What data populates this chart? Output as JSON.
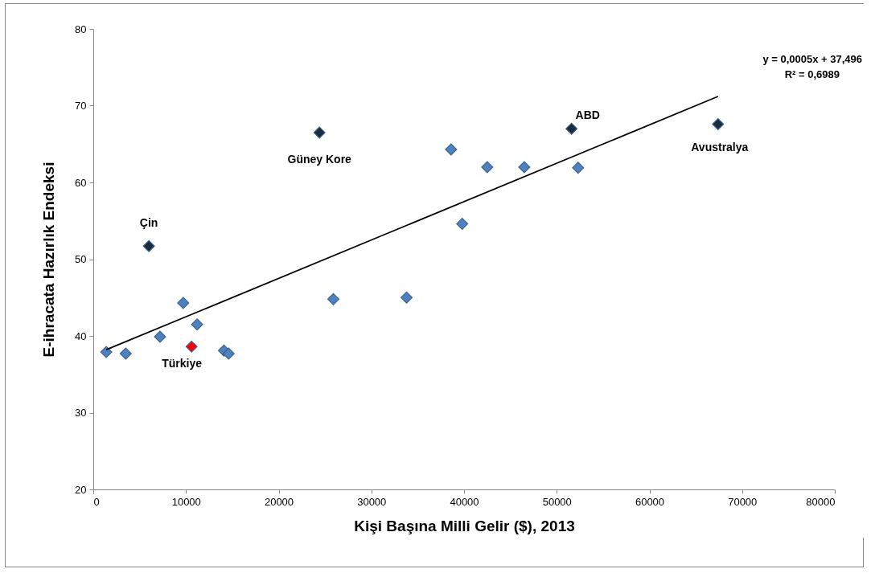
{
  "chart_data": {
    "type": "scatter",
    "xlabel": "Kişi Başına Milli Gelir ($), 2013",
    "ylabel": "E-ihracata Hazırlık Endeksi",
    "series": [
      {
        "color": "#4f81bd",
        "x": [
          1400,
          3500,
          7200,
          9700,
          11200,
          14100,
          14600,
          25900,
          33800,
          38600,
          39800,
          42500,
          46500,
          52300
        ],
        "values": [
          37.9,
          37.7,
          39.9,
          44.3,
          41.5,
          38.1,
          37.7,
          44.8,
          45.0,
          64.3,
          54.6,
          62.0,
          62.0,
          61.9
        ]
      },
      {
        "color": "#1c2a3b",
        "x": [
          6000,
          24400,
          51600,
          67400
        ],
        "values": [
          51.7,
          66.5,
          67.0,
          67.6
        ]
      },
      {
        "color": "#ff0000",
        "x": [
          10600
        ],
        "values": [
          38.6
        ]
      },
      {
        "type": "line",
        "color": "#000000",
        "x": [
          1400,
          67400
        ],
        "values": [
          38.2,
          71.2
        ],
        "marker": "none"
      }
    ],
    "xlim": [
      0,
      80000
    ],
    "xticks": [
      0,
      10000,
      20000,
      30000,
      40000,
      50000,
      60000,
      70000,
      80000
    ],
    "ylim": [
      20,
      80
    ],
    "yticks": [
      20,
      30,
      40,
      50,
      60,
      70,
      80
    ],
    "grid": false,
    "marker": "diamond",
    "annotations": [
      {
        "text": "Çin",
        "x": 6000,
        "y": 51.7
      },
      {
        "text": "Güney Kore",
        "x": 24400,
        "y": 66.5
      },
      {
        "text": "ABD",
        "x": 51600,
        "y": 67.0
      },
      {
        "text": "Avustralya",
        "x": 67400,
        "y": 67.6
      },
      {
        "text": "Türkiye",
        "x": 10600,
        "y": 38.6
      },
      "y = 0,0005x + 37,496",
      "R² = 0,6989"
    ]
  }
}
